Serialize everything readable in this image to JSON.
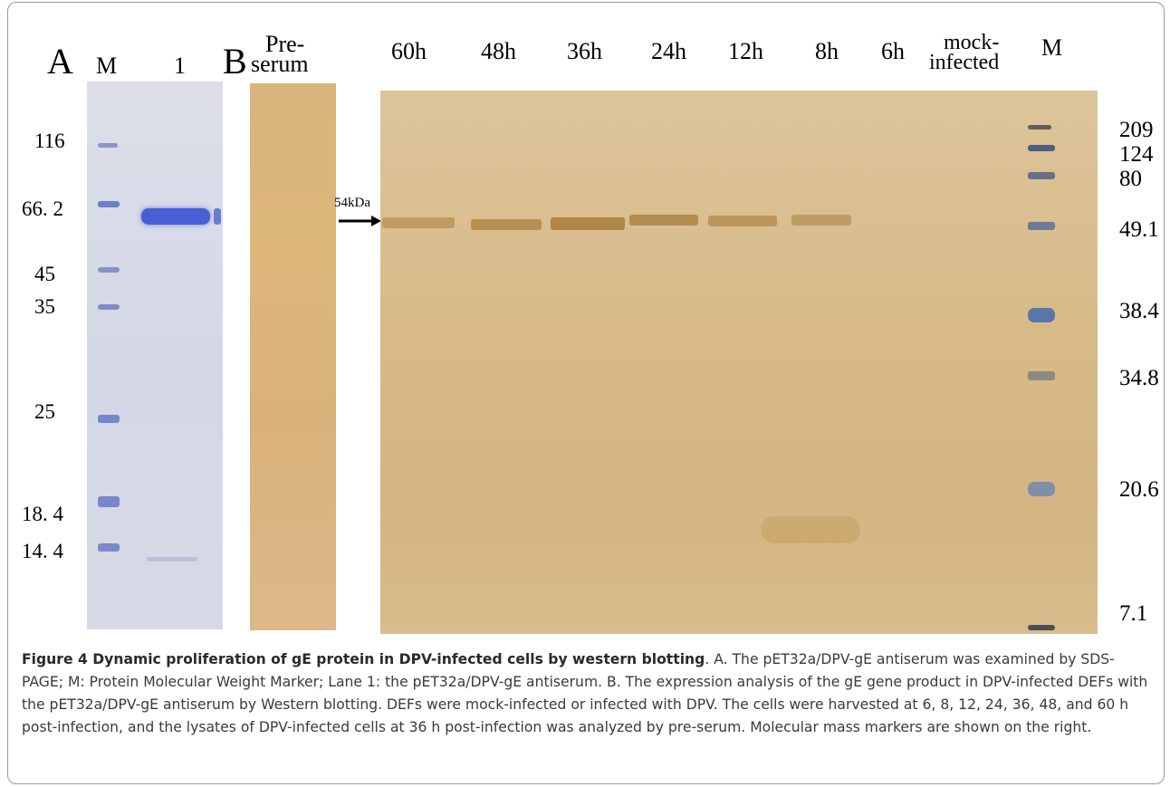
{
  "panelA": {
    "letter": "A",
    "lanes": [
      "M",
      "1"
    ],
    "mw_labels": [
      "116",
      "66. 2",
      "45",
      "35",
      "25",
      "18. 4",
      "14. 4"
    ]
  },
  "panelB": {
    "letter": "B",
    "preserum_label_line1": "Pre-",
    "preserum_label_line2": "serum",
    "lanes": [
      "60h",
      "48h",
      "36h",
      "24h",
      "12h",
      "8h",
      "6h"
    ],
    "mock_line1": "mock-",
    "mock_line2": "infected",
    "marker_lane": "M",
    "arrow_label": "54kDa",
    "mw_labels": [
      "209",
      "124",
      "80",
      "49.1",
      "38.4",
      "34.8",
      "20.6",
      "7.1"
    ]
  },
  "caption": {
    "title": "Figure 4 Dynamic proliferation of gE protein in DPV-infected cells by western blotting",
    "body": ". A. The pET32a/DPV-gE antiserum was examined by SDS-PAGE; M: Protein Molecular Weight Marker; Lane 1: the pET32a/DPV-gE antiserum. B. The expression analysis of the gE gene product in DPV-infected DEFs with the pET32a/DPV-gE antiserum by Western blotting. DEFs were mock-infected or infected with DPV. The cells were harvested at 6, 8, 12, 24, 36, 48, and 60 h post-infection, and the lysates of DPV-infected cells at 36 h post-infection was analyzed by pre-serum. Molecular mass markers are shown on the right."
  }
}
